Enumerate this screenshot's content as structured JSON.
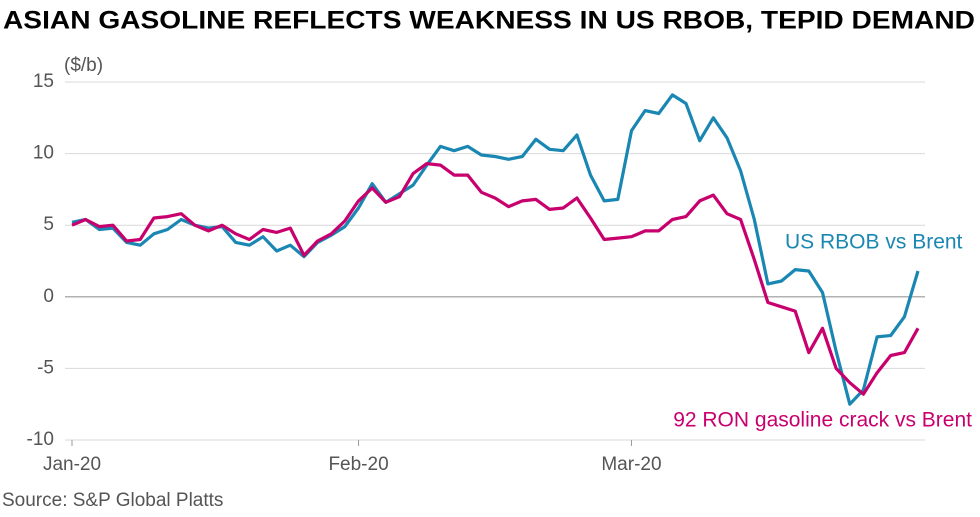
{
  "chart_data": {
    "type": "line",
    "title": "ASIAN GASOLINE REFLECTS WEAKNESS IN US RBOB, TEPID  DEMAND",
    "y_label": "($/b)",
    "source": "Source: S&P Global Platts",
    "categories": [
      "Jan-20",
      null,
      null,
      null,
      null,
      null,
      null,
      null,
      null,
      null,
      null,
      null,
      null,
      null,
      null,
      null,
      null,
      null,
      null,
      null,
      null,
      "Feb-20",
      null,
      null,
      null,
      null,
      null,
      null,
      null,
      null,
      null,
      null,
      null,
      null,
      null,
      null,
      null,
      null,
      null,
      null,
      null,
      "Mar-20",
      null,
      null,
      null,
      null,
      null,
      null,
      null,
      null,
      null,
      null,
      null,
      null,
      null,
      null,
      null,
      null,
      null,
      null,
      null,
      null,
      null
    ],
    "series": [
      {
        "name": "US RBOB vs Brent",
        "color": "#1a87b3",
        "values": [
          5.2,
          5.4,
          4.7,
          4.8,
          3.8,
          3.6,
          4.4,
          4.7,
          5.4,
          5.0,
          4.8,
          4.9,
          3.8,
          3.6,
          4.2,
          3.2,
          3.6,
          2.8,
          3.8,
          4.3,
          4.9,
          6.2,
          7.9,
          6.6,
          7.2,
          7.8,
          9.2,
          10.5,
          10.2,
          10.5,
          9.9,
          9.8,
          9.6,
          9.8,
          11.0,
          10.3,
          10.2,
          11.3,
          8.5,
          6.7,
          6.8,
          11.6,
          13.0,
          12.8,
          14.1,
          13.5,
          10.9,
          12.5,
          11.1,
          8.8,
          5.4,
          0.9,
          1.1,
          1.9,
          1.8,
          0.3,
          -3.8,
          -7.5,
          -6.5,
          -2.8,
          -2.7,
          -1.4,
          1.8
        ]
      },
      {
        "name": "92 RON gasoline crack vs Brent",
        "color": "#c8006e",
        "values": [
          5.0,
          5.4,
          4.9,
          5.0,
          3.9,
          4.0,
          5.5,
          5.6,
          5.8,
          5.0,
          4.6,
          5.0,
          4.4,
          4.0,
          4.7,
          4.5,
          4.8,
          2.9,
          3.9,
          4.4,
          5.3,
          6.7,
          7.6,
          6.6,
          7.0,
          8.6,
          9.3,
          9.2,
          8.5,
          8.5,
          7.3,
          6.9,
          6.3,
          6.7,
          6.8,
          6.1,
          6.2,
          6.9,
          5.5,
          4.0,
          4.1,
          4.2,
          4.6,
          4.6,
          5.4,
          5.6,
          6.7,
          7.1,
          5.8,
          5.4,
          2.6,
          -0.4,
          -0.7,
          -1.0,
          -3.9,
          -2.2,
          -5.0,
          -6.0,
          -6.8,
          -5.3,
          -4.1,
          -3.9,
          -2.2
        ]
      }
    ],
    "ylim": [
      -10,
      15
    ],
    "yticks": [
      -10,
      -5,
      0,
      5,
      10,
      15
    ],
    "grid": true
  }
}
